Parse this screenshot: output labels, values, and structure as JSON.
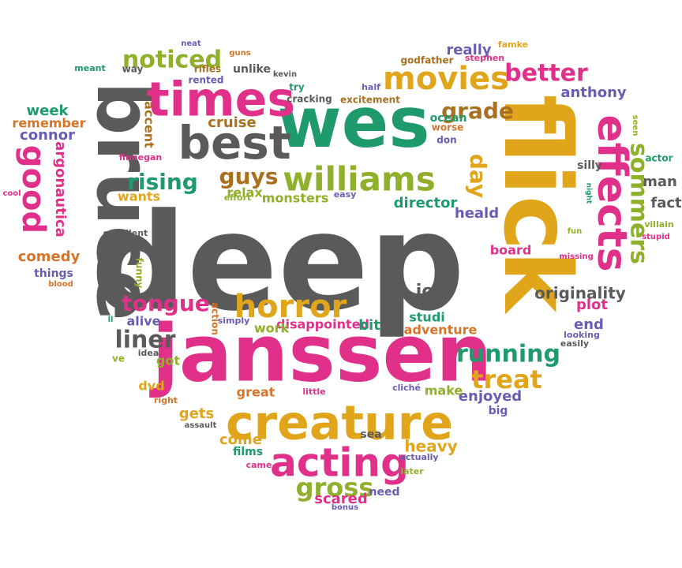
{
  "palette": {
    "pink": "#e0308a",
    "green": "#1f9a6d",
    "gold": "#e0a51a",
    "olive": "#8fb02a",
    "brown": "#a9711f",
    "gray": "#5a5a5a",
    "violet": "#6a5cb3",
    "orange": "#d6742a",
    "teal": "#2e8e95"
  },
  "words": [
    {
      "text": "deep",
      "color": "gray"
    },
    {
      "text": "janssen",
      "color": "pink"
    },
    {
      "text": "flick",
      "color": "gold"
    },
    {
      "text": "bruce",
      "color": "gray"
    },
    {
      "text": "wes",
      "color": "green"
    },
    {
      "text": "creature",
      "color": "gold"
    },
    {
      "text": "acting",
      "color": "pink"
    },
    {
      "text": "times",
      "color": "pink"
    },
    {
      "text": "best",
      "color": "gray"
    },
    {
      "text": "effects",
      "color": "pink"
    },
    {
      "text": "williams",
      "color": "olive"
    },
    {
      "text": "horror",
      "color": "gold"
    },
    {
      "text": "movies",
      "color": "gold"
    },
    {
      "text": "good",
      "color": "pink"
    },
    {
      "text": "running",
      "color": "green"
    },
    {
      "text": "treat",
      "color": "gold"
    },
    {
      "text": "gross",
      "color": "olive"
    },
    {
      "text": "sommers",
      "color": "olive"
    },
    {
      "text": "better",
      "color": "pink"
    },
    {
      "text": "noticed",
      "color": "olive"
    },
    {
      "text": "grade",
      "color": "brown"
    },
    {
      "text": "tongue",
      "color": "pink"
    },
    {
      "text": "rising",
      "color": "green"
    },
    {
      "text": "liner",
      "color": "gray"
    },
    {
      "text": "guys",
      "color": "brown"
    },
    {
      "text": "day",
      "color": "gold"
    },
    {
      "text": "originality",
      "color": "gray"
    },
    {
      "text": "job",
      "color": "gray"
    },
    {
      "text": "heavy",
      "color": "gold"
    },
    {
      "text": "comedy",
      "color": "orange"
    },
    {
      "text": "argonautica",
      "color": "pink"
    },
    {
      "text": "connor",
      "color": "violet"
    },
    {
      "text": "anthony",
      "color": "violet"
    },
    {
      "text": "really",
      "color": "violet"
    },
    {
      "text": "director",
      "color": "green"
    },
    {
      "text": "heald",
      "color": "violet"
    },
    {
      "text": "cruise",
      "color": "brown"
    },
    {
      "text": "week",
      "color": "green"
    },
    {
      "text": "remember",
      "color": "orange"
    },
    {
      "text": "accent",
      "color": "brown"
    },
    {
      "text": "wants",
      "color": "gold"
    },
    {
      "text": "relax",
      "color": "olive"
    },
    {
      "text": "monsters",
      "color": "olive"
    },
    {
      "text": "plot",
      "color": "pink"
    },
    {
      "text": "end",
      "color": "violet"
    },
    {
      "text": "board",
      "color": "pink"
    },
    {
      "text": "man",
      "color": "gray"
    },
    {
      "text": "fact",
      "color": "gray"
    },
    {
      "text": "studi",
      "color": "green"
    },
    {
      "text": "adventure",
      "color": "orange"
    },
    {
      "text": "disappointed",
      "color": "pink"
    },
    {
      "text": "bit",
      "color": "green"
    },
    {
      "text": "work",
      "color": "olive"
    },
    {
      "text": "alive",
      "color": "violet"
    },
    {
      "text": "enjoyed",
      "color": "violet"
    },
    {
      "text": "make",
      "color": "olive"
    },
    {
      "text": "great",
      "color": "orange"
    },
    {
      "text": "come",
      "color": "gold"
    },
    {
      "text": "gets",
      "color": "gold"
    },
    {
      "text": "films",
      "color": "green"
    },
    {
      "text": "dvd",
      "color": "gold"
    },
    {
      "text": "got",
      "color": "olive"
    },
    {
      "text": "sea",
      "color": "gray"
    },
    {
      "text": "scared",
      "color": "pink"
    },
    {
      "text": "need",
      "color": "violet"
    },
    {
      "text": "big",
      "color": "violet"
    },
    {
      "text": "things",
      "color": "violet"
    },
    {
      "text": "seen",
      "color": "olive"
    },
    {
      "text": "actor",
      "color": "green"
    },
    {
      "text": "ocean",
      "color": "green"
    },
    {
      "text": "half",
      "color": "violet"
    },
    {
      "text": "easy",
      "color": "violet"
    },
    {
      "text": "unlike",
      "color": "gray"
    },
    {
      "text": "funny",
      "color": "olive"
    },
    {
      "text": "action",
      "color": "orange"
    },
    {
      "text": "kevin",
      "color": "gray"
    },
    {
      "text": "excitement",
      "color": "brown"
    },
    {
      "text": "cracking",
      "color": "gray"
    },
    {
      "text": "try",
      "color": "green"
    },
    {
      "text": "rifles",
      "color": "brown"
    },
    {
      "text": "rented",
      "color": "violet"
    },
    {
      "text": "guns",
      "color": "orange"
    },
    {
      "text": "neat",
      "color": "violet"
    },
    {
      "text": "meant",
      "color": "green"
    },
    {
      "text": "way",
      "color": "gray"
    },
    {
      "text": "godfather",
      "color": "brown"
    },
    {
      "text": "stephen",
      "color": "pink"
    },
    {
      "text": "famke",
      "color": "gold"
    },
    {
      "text": "worse",
      "color": "orange"
    },
    {
      "text": "don",
      "color": "violet"
    },
    {
      "text": "silly",
      "color": "gray"
    },
    {
      "text": "finnegan",
      "color": "pink"
    },
    {
      "text": "effort",
      "color": "olive"
    },
    {
      "text": "excellent",
      "color": "gray"
    },
    {
      "text": "cool",
      "color": "pink"
    },
    {
      "text": "blood",
      "color": "orange"
    },
    {
      "text": "night",
      "color": "green"
    },
    {
      "text": "fun",
      "color": "olive"
    },
    {
      "text": "villain",
      "color": "olive"
    },
    {
      "text": "stupid",
      "color": "pink"
    },
    {
      "text": "missing",
      "color": "pink"
    },
    {
      "text": "looking",
      "color": "violet"
    },
    {
      "text": "easily",
      "color": "gray"
    },
    {
      "text": "ll",
      "color": "green"
    },
    {
      "text": "ve",
      "color": "olive"
    },
    {
      "text": "idea",
      "color": "gray"
    },
    {
      "text": "simply",
      "color": "violet"
    },
    {
      "text": "right",
      "color": "orange"
    },
    {
      "text": "assault",
      "color": "gray"
    },
    {
      "text": "little",
      "color": "pink"
    },
    {
      "text": "cliché",
      "color": "violet"
    },
    {
      "text": "actually",
      "color": "violet"
    },
    {
      "text": "later",
      "color": "olive"
    },
    {
      "text": "came",
      "color": "pink"
    },
    {
      "text": "bonus",
      "color": "violet"
    }
  ]
}
